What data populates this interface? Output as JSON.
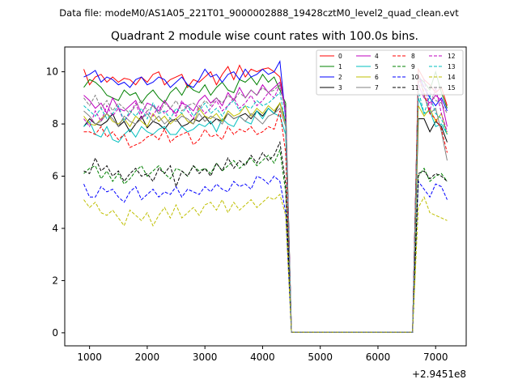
{
  "figure": {
    "suptitle": "Data file: modeM0/AS1A05_221T01_9000002888_19428cztM0_level2_quad_clean.evt",
    "offset_label": "+2.9451e8"
  },
  "chart_data": {
    "type": "line",
    "title": "Quadrant 2 module wise count rates with 100.0s bins.",
    "xlabel": "",
    "ylabel": "",
    "x_offset": 294510000,
    "xlim": [
      570,
      7530
    ],
    "ylim": [
      -0.5,
      10.95
    ],
    "xticks": [
      1000,
      2000,
      3000,
      4000,
      5000,
      6000,
      7000
    ],
    "yticks": [
      0,
      2,
      4,
      6,
      8,
      10
    ],
    "grid": false,
    "legend": {
      "placement": "upper-right",
      "columns": 4
    },
    "x": [
      900,
      1000,
      1100,
      1200,
      1300,
      1400,
      1500,
      1600,
      1700,
      1800,
      1900,
      2000,
      2100,
      2200,
      2300,
      2400,
      2500,
      2600,
      2700,
      2800,
      2900,
      3000,
      3100,
      3200,
      3300,
      3400,
      3500,
      3600,
      3700,
      3800,
      3900,
      4000,
      4100,
      4200,
      4300,
      4400,
      4500,
      4600,
      4700,
      4800,
      4900,
      5000,
      5100,
      5200,
      5300,
      5400,
      5500,
      5600,
      5700,
      5800,
      5900,
      6000,
      6100,
      6200,
      6300,
      6400,
      6500,
      6600,
      6700,
      6800,
      6900,
      7000,
      7100,
      7200
    ],
    "series": [
      {
        "name": "0",
        "color": "#ff0000",
        "dash": false,
        "values": [
          10.1,
          9.5,
          9.8,
          9.9,
          9.6,
          9.8,
          9.6,
          9.75,
          9.7,
          9.5,
          9.8,
          9.6,
          9.9,
          10.0,
          9.5,
          9.7,
          9.8,
          9.9,
          9.4,
          9.7,
          9.6,
          9.8,
          10.0,
          9.5,
          9.9,
          10.2,
          9.7,
          10.25,
          9.8,
          10.1,
          10.0,
          10.1,
          10.15,
          10.0,
          9.8,
          8.5,
          0.02,
          0.02,
          0.02,
          0.02,
          0.02,
          0.02,
          0.02,
          0.02,
          0.02,
          0.02,
          0.02,
          0.02,
          0.02,
          0.02,
          0.02,
          0.02,
          0.02,
          0.02,
          0.02,
          0.02,
          0.02,
          0.02,
          10.1,
          9.7,
          9.5,
          9.2,
          9.4,
          8.7
        ]
      },
      {
        "name": "1",
        "color": "#008000",
        "dash": false,
        "values": [
          9.4,
          9.7,
          9.6,
          9.4,
          9.1,
          9.0,
          8.9,
          9.3,
          9.1,
          9.2,
          8.8,
          9.1,
          9.3,
          9.0,
          8.8,
          9.2,
          9.4,
          9.1,
          9.5,
          9.3,
          9.2,
          9.5,
          9.1,
          9.4,
          9.6,
          9.3,
          9.2,
          9.7,
          9.6,
          9.8,
          9.5,
          9.9,
          9.6,
          9.8,
          9.3,
          8.8,
          0.02,
          0.02,
          0.02,
          0.02,
          0.02,
          0.02,
          0.02,
          0.02,
          0.02,
          0.02,
          0.02,
          0.02,
          0.02,
          0.02,
          0.02,
          0.02,
          0.02,
          0.02,
          0.02,
          0.02,
          0.02,
          0.02,
          9.8,
          9.6,
          9.3,
          10.0,
          9.2,
          8.6
        ]
      },
      {
        "name": "2",
        "color": "#0000ff",
        "dash": false,
        "values": [
          9.8,
          9.9,
          10.05,
          9.6,
          9.8,
          9.7,
          9.5,
          9.6,
          9.4,
          9.7,
          9.8,
          9.5,
          9.6,
          9.8,
          9.7,
          9.4,
          9.6,
          9.8,
          9.5,
          9.4,
          9.7,
          10.1,
          9.8,
          9.9,
          9.6,
          9.9,
          10.0,
          9.7,
          10.1,
          9.8,
          9.9,
          10.1,
          9.9,
          10.0,
          10.4,
          8.2,
          0.02,
          0.02,
          0.02,
          0.02,
          0.02,
          0.02,
          0.02,
          0.02,
          0.02,
          0.02,
          0.02,
          0.02,
          0.02,
          0.02,
          0.02,
          0.02,
          0.02,
          0.02,
          0.02,
          0.02,
          0.02,
          0.02,
          9.9,
          9.4,
          9.0,
          8.7,
          9.0,
          8.5
        ]
      },
      {
        "name": "3",
        "color": "#000000",
        "dash": false,
        "values": [
          7.9,
          8.2,
          8.0,
          7.95,
          8.1,
          8.4,
          7.9,
          8.1,
          7.7,
          8.0,
          8.3,
          7.85,
          8.1,
          8.0,
          7.8,
          8.1,
          8.2,
          7.9,
          8.0,
          8.2,
          8.1,
          8.3,
          8.0,
          8.2,
          8.1,
          8.4,
          8.2,
          8.3,
          8.4,
          8.2,
          8.5,
          8.3,
          8.6,
          8.4,
          8.8,
          8.1,
          0.02,
          0.02,
          0.02,
          0.02,
          0.02,
          0.02,
          0.02,
          0.02,
          0.02,
          0.02,
          0.02,
          0.02,
          0.02,
          0.02,
          0.02,
          0.02,
          0.02,
          0.02,
          0.02,
          0.02,
          0.02,
          0.02,
          8.2,
          8.2,
          7.7,
          8.1,
          7.9,
          7.3
        ]
      },
      {
        "name": "4",
        "color": "#bf00bf",
        "dash": false,
        "values": [
          9.1,
          8.9,
          8.6,
          8.8,
          8.4,
          9.0,
          8.6,
          8.5,
          8.7,
          8.9,
          8.4,
          8.8,
          8.7,
          8.5,
          8.9,
          8.6,
          8.4,
          8.8,
          8.7,
          8.5,
          8.9,
          9.1,
          8.8,
          9.0,
          8.7,
          9.2,
          8.9,
          9.4,
          9.0,
          9.3,
          9.1,
          9.5,
          9.2,
          9.4,
          9.6,
          8.6,
          0.02,
          0.02,
          0.02,
          0.02,
          0.02,
          0.02,
          0.02,
          0.02,
          0.02,
          0.02,
          0.02,
          0.02,
          0.02,
          0.02,
          0.02,
          0.02,
          0.02,
          0.02,
          0.02,
          0.02,
          0.02,
          0.02,
          9.5,
          9.0,
          8.8,
          9.1,
          8.9,
          7.9
        ]
      },
      {
        "name": "5",
        "color": "#00bfbf",
        "dash": false,
        "values": [
          7.9,
          8.1,
          7.6,
          7.5,
          7.9,
          7.4,
          7.3,
          7.6,
          7.8,
          7.5,
          7.9,
          7.7,
          7.6,
          7.8,
          7.9,
          7.6,
          7.6,
          7.9,
          7.7,
          7.8,
          8.0,
          7.9,
          8.1,
          7.7,
          8.2,
          8.0,
          7.9,
          8.3,
          8.1,
          8.0,
          8.5,
          8.2,
          8.6,
          8.4,
          8.3,
          7.6,
          0.02,
          0.02,
          0.02,
          0.02,
          0.02,
          0.02,
          0.02,
          0.02,
          0.02,
          0.02,
          0.02,
          0.02,
          0.02,
          0.02,
          0.02,
          0.02,
          0.02,
          0.02,
          0.02,
          0.02,
          0.02,
          0.02,
          9.0,
          8.4,
          8.5,
          7.9,
          8.0,
          7.6
        ]
      },
      {
        "name": "6",
        "color": "#bfbf00",
        "dash": false,
        "values": [
          8.3,
          8.0,
          7.95,
          8.2,
          8.4,
          8.1,
          8.0,
          8.2,
          7.9,
          8.3,
          8.1,
          7.9,
          8.4,
          8.1,
          8.3,
          8.0,
          8.2,
          8.4,
          8.1,
          8.0,
          8.6,
          8.3,
          8.2,
          8.4,
          8.1,
          8.5,
          8.3,
          8.4,
          8.7,
          8.3,
          8.6,
          8.4,
          8.7,
          8.5,
          8.8,
          8.0,
          0.02,
          0.02,
          0.02,
          0.02,
          0.02,
          0.02,
          0.02,
          0.02,
          0.02,
          0.02,
          0.02,
          0.02,
          0.02,
          0.02,
          0.02,
          0.02,
          0.02,
          0.02,
          0.02,
          0.02,
          0.02,
          0.02,
          8.7,
          8.3,
          8.6,
          8.1,
          8.4,
          7.6
        ]
      },
      {
        "name": "7",
        "color": "#808080",
        "dash": false,
        "values": [
          8.5,
          8.3,
          8.0,
          8.1,
          8.4,
          8.2,
          7.9,
          8.3,
          8.1,
          8.0,
          8.2,
          8.4,
          8.1,
          8.3,
          8.0,
          8.2,
          8.1,
          8.3,
          8.2,
          8.0,
          8.4,
          8.1,
          8.3,
          8.2,
          8.0,
          8.4,
          8.2,
          8.3,
          8.1,
          8.4,
          8.2,
          8.0,
          8.3,
          8.4,
          8.6,
          7.9,
          0.02,
          0.02,
          0.02,
          0.02,
          0.02,
          0.02,
          0.02,
          0.02,
          0.02,
          0.02,
          0.02,
          0.02,
          0.02,
          0.02,
          0.02,
          0.02,
          0.02,
          0.02,
          0.02,
          0.02,
          0.02,
          0.02,
          9.9,
          9.1,
          8.4,
          8.6,
          7.7,
          6.6
        ]
      },
      {
        "name": "8",
        "color": "#ff0000",
        "dash": true,
        "values": [
          7.7,
          7.7,
          7.6,
          7.9,
          7.5,
          7.7,
          7.4,
          7.6,
          7.1,
          7.2,
          7.3,
          7.5,
          7.6,
          7.4,
          7.8,
          7.3,
          7.5,
          7.6,
          7.7,
          7.2,
          7.4,
          7.8,
          7.5,
          7.6,
          7.4,
          7.9,
          7.6,
          7.8,
          7.7,
          7.9,
          7.6,
          7.7,
          7.9,
          7.8,
          8.5,
          6.9,
          0.02,
          0.02,
          0.02,
          0.02,
          0.02,
          0.02,
          0.02,
          0.02,
          0.02,
          0.02,
          0.02,
          0.02,
          0.02,
          0.02,
          0.02,
          0.02,
          0.02,
          0.02,
          0.02,
          0.02,
          0.02,
          0.02,
          9.9,
          9.2,
          8.4,
          8.2,
          7.8,
          6.9
        ]
      },
      {
        "name": "9",
        "color": "#008000",
        "dash": true,
        "values": [
          6.1,
          6.3,
          6.4,
          5.9,
          6.2,
          5.8,
          6.1,
          5.7,
          5.9,
          6.2,
          6.4,
          6.0,
          6.2,
          6.4,
          6.1,
          5.9,
          6.3,
          6.2,
          6.0,
          6.4,
          6.2,
          6.3,
          6.1,
          6.5,
          6.2,
          6.4,
          6.6,
          6.3,
          6.5,
          6.7,
          6.4,
          6.6,
          6.8,
          6.5,
          7.0,
          5.4,
          0.02,
          0.02,
          0.02,
          0.02,
          0.02,
          0.02,
          0.02,
          0.02,
          0.02,
          0.02,
          0.02,
          0.02,
          0.02,
          0.02,
          0.02,
          0.02,
          0.02,
          0.02,
          0.02,
          0.02,
          0.02,
          0.02,
          6.0,
          6.3,
          5.8,
          6.0,
          6.1,
          5.8
        ]
      },
      {
        "name": "10",
        "color": "#0000ff",
        "dash": true,
        "values": [
          5.7,
          5.2,
          5.2,
          5.6,
          5.4,
          5.5,
          5.2,
          5.0,
          5.4,
          5.6,
          5.1,
          5.3,
          5.5,
          5.2,
          5.4,
          5.3,
          5.6,
          5.2,
          5.5,
          5.4,
          5.3,
          5.6,
          5.4,
          5.7,
          5.5,
          5.4,
          5.8,
          5.6,
          5.7,
          5.5,
          6.0,
          5.9,
          5.7,
          6.0,
          5.8,
          4.6,
          0.02,
          0.02,
          0.02,
          0.02,
          0.02,
          0.02,
          0.02,
          0.02,
          0.02,
          0.02,
          0.02,
          0.02,
          0.02,
          0.02,
          0.02,
          0.02,
          0.02,
          0.02,
          0.02,
          0.02,
          0.02,
          0.02,
          5.8,
          5.5,
          5.2,
          5.7,
          5.6,
          5.1
        ]
      },
      {
        "name": "11",
        "color": "#000000",
        "dash": true,
        "values": [
          6.2,
          6.1,
          6.7,
          6.2,
          6.4,
          6.0,
          6.2,
          5.8,
          6.1,
          6.3,
          6.0,
          6.1,
          5.8,
          6.3,
          6.1,
          6.4,
          5.6,
          6.2,
          6.0,
          6.4,
          6.1,
          6.3,
          6.0,
          6.5,
          6.2,
          6.7,
          6.3,
          6.6,
          6.4,
          6.8,
          6.5,
          6.9,
          6.6,
          6.8,
          7.3,
          5.7,
          0.02,
          0.02,
          0.02,
          0.02,
          0.02,
          0.02,
          0.02,
          0.02,
          0.02,
          0.02,
          0.02,
          0.02,
          0.02,
          0.02,
          0.02,
          0.02,
          0.02,
          0.02,
          0.02,
          0.02,
          0.02,
          0.02,
          6.1,
          6.2,
          5.9,
          6.1,
          6.0,
          5.8
        ]
      },
      {
        "name": "12",
        "color": "#bf00bf",
        "dash": true,
        "values": [
          8.2,
          7.9,
          8.5,
          8.1,
          8.7,
          8.3,
          8.6,
          8.1,
          8.4,
          8.8,
          8.2,
          8.5,
          8.3,
          8.7,
          8.4,
          8.6,
          8.3,
          8.9,
          8.5,
          8.2,
          8.7,
          8.4,
          8.6,
          8.9,
          8.5,
          8.7,
          9.0,
          8.6,
          8.8,
          9.1,
          8.7,
          8.9,
          9.2,
          9.0,
          9.5,
          8.4,
          0.02,
          0.02,
          0.02,
          0.02,
          0.02,
          0.02,
          0.02,
          0.02,
          0.02,
          0.02,
          0.02,
          0.02,
          0.02,
          0.02,
          0.02,
          0.02,
          0.02,
          0.02,
          0.02,
          0.02,
          0.02,
          0.02,
          9.6,
          9.7,
          8.5,
          9.4,
          8.4,
          7.7
        ]
      },
      {
        "name": "13",
        "color": "#00bfbf",
        "dash": true,
        "values": [
          8.7,
          8.5,
          8.3,
          8.6,
          8.2,
          8.4,
          8.7,
          8.1,
          8.5,
          8.3,
          8.6,
          8.2,
          8.8,
          8.4,
          8.5,
          8.2,
          8.6,
          8.4,
          8.7,
          8.3,
          8.5,
          8.8,
          8.4,
          8.6,
          8.3,
          8.7,
          8.9,
          8.5,
          8.7,
          8.6,
          8.9,
          8.7,
          8.8,
          9.0,
          9.2,
          8.0,
          0.02,
          0.02,
          0.02,
          0.02,
          0.02,
          0.02,
          0.02,
          0.02,
          0.02,
          0.02,
          0.02,
          0.02,
          0.02,
          0.02,
          0.02,
          0.02,
          0.02,
          0.02,
          0.02,
          0.02,
          0.02,
          0.02,
          9.3,
          8.4,
          9.1,
          8.4,
          8.2,
          7.6
        ]
      },
      {
        "name": "14",
        "color": "#bfbf00",
        "dash": true,
        "values": [
          5.1,
          4.8,
          5.0,
          4.6,
          4.5,
          4.7,
          4.4,
          4.1,
          4.7,
          4.5,
          4.3,
          4.6,
          4.1,
          4.5,
          4.8,
          4.4,
          4.9,
          4.4,
          4.6,
          4.8,
          4.5,
          4.9,
          5.0,
          4.7,
          5.1,
          4.6,
          5.0,
          4.7,
          4.9,
          5.1,
          4.8,
          5.0,
          5.2,
          5.1,
          5.3,
          4.5,
          0.02,
          0.02,
          0.02,
          0.02,
          0.02,
          0.02,
          0.02,
          0.02,
          0.02,
          0.02,
          0.02,
          0.02,
          0.02,
          0.02,
          0.02,
          0.02,
          0.02,
          0.02,
          0.02,
          0.02,
          0.02,
          0.02,
          4.8,
          5.2,
          4.6,
          4.5,
          4.4,
          4.3
        ]
      },
      {
        "name": "15",
        "color": "#808080",
        "dash": true,
        "values": [
          9.0,
          8.7,
          9.1,
          8.6,
          8.9,
          8.5,
          8.8,
          8.6,
          8.4,
          8.7,
          8.9,
          8.5,
          8.7,
          8.4,
          8.8,
          8.6,
          8.9,
          8.5,
          8.7,
          8.8,
          8.6,
          8.9,
          8.7,
          9.0,
          8.8,
          9.1,
          8.9,
          9.2,
          9.0,
          9.3,
          9.1,
          9.4,
          9.2,
          9.3,
          9.5,
          8.5,
          0.02,
          0.02,
          0.02,
          0.02,
          0.02,
          0.02,
          0.02,
          0.02,
          0.02,
          0.02,
          0.02,
          0.02,
          0.02,
          0.02,
          0.02,
          0.02,
          0.02,
          0.02,
          0.02,
          0.02,
          0.02,
          0.02,
          9.5,
          9.4,
          9.2,
          8.9,
          8.8,
          8.4
        ]
      }
    ]
  }
}
